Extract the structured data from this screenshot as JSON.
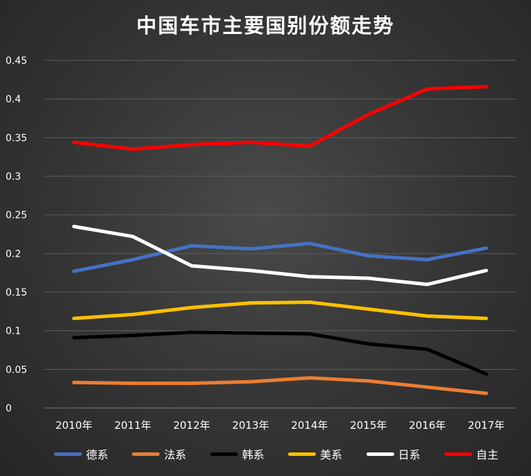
{
  "chart_data": {
    "type": "line",
    "title": "中国车市主要国别份额走势",
    "xlabel": "",
    "ylabel": "",
    "categories": [
      "2010年",
      "2011年",
      "2012年",
      "2013年",
      "2014年",
      "2015年",
      "2016年",
      "2017年"
    ],
    "ylim": [
      0,
      0.45
    ],
    "yticks": [
      "0",
      "0.05",
      "0.1",
      "0.15",
      "0.2",
      "0.25",
      "0.3",
      "0.35",
      "0.4",
      "0.45"
    ],
    "grid": true,
    "legend_position": "bottom",
    "series": [
      {
        "name": "德系",
        "color": "#4472c4",
        "values": [
          0.177,
          0.192,
          0.21,
          0.206,
          0.213,
          0.197,
          0.192,
          0.207
        ]
      },
      {
        "name": "法系",
        "color": "#ed7d31",
        "values": [
          0.033,
          0.032,
          0.032,
          0.034,
          0.039,
          0.035,
          0.027,
          0.019
        ]
      },
      {
        "name": "韩系",
        "color": "#000000",
        "values": [
          0.091,
          0.094,
          0.098,
          0.097,
          0.096,
          0.083,
          0.076,
          0.044
        ]
      },
      {
        "name": "美系",
        "color": "#ffc000",
        "values": [
          0.116,
          0.121,
          0.13,
          0.136,
          0.137,
          0.128,
          0.119,
          0.116
        ]
      },
      {
        "name": "日系",
        "color": "#ffffff",
        "values": [
          0.235,
          0.222,
          0.184,
          0.178,
          0.17,
          0.168,
          0.16,
          0.178
        ]
      },
      {
        "name": "自主",
        "color": "#ff0000",
        "values": [
          0.344,
          0.335,
          0.341,
          0.344,
          0.339,
          0.38,
          0.413,
          0.416
        ]
      }
    ]
  }
}
